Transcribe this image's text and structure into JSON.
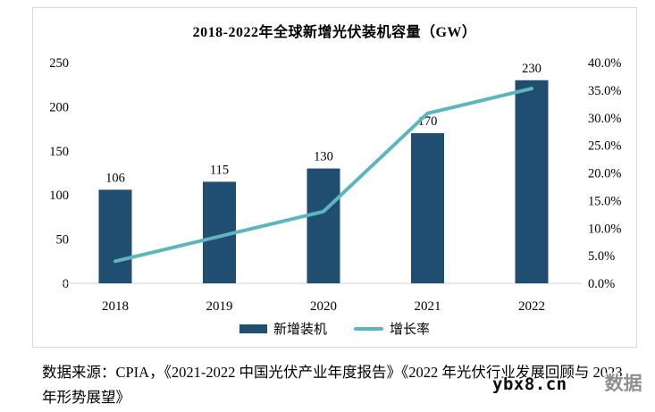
{
  "chart": {
    "title": "2018-2022年全球新增光伏装机容量（GW）",
    "legend": {
      "bar_label": "新增装机",
      "line_label": "增长率"
    },
    "colors": {
      "bar": "#1F4E70",
      "line": "#5EB6BD",
      "axis": "#D9D9D9",
      "text": "#000000"
    }
  },
  "chart_data": {
    "type": "bar",
    "subtype": "bar+line combo, dual axis",
    "title": "2018-2022年全球新增光伏装机容量（GW）",
    "categories": [
      "2018",
      "2019",
      "2020",
      "2021",
      "2022"
    ],
    "series": [
      {
        "name": "新增装机",
        "type": "bar",
        "axis": "left",
        "values": [
          106,
          115,
          130,
          170,
          230
        ]
      },
      {
        "name": "增长率",
        "type": "line",
        "axis": "right",
        "values_pct": [
          4.0,
          8.5,
          13.0,
          30.8,
          35.3
        ]
      }
    ],
    "bar_data_labels": [
      "106",
      "115",
      "130",
      "170",
      "230"
    ],
    "left_axis": {
      "ticks": [
        0,
        50,
        100,
        150,
        200,
        250
      ],
      "min": 0,
      "max": 250
    },
    "right_axis": {
      "ticks_pct": [
        0,
        5,
        10,
        15,
        20,
        25,
        30,
        35,
        40
      ],
      "min_pct": 0,
      "max_pct": 40,
      "tick_format": "percent_one_decimal"
    },
    "grid": "off",
    "legend_position": "bottom"
  },
  "source": {
    "line1": "数据来源：CPIA，《2021-2022 中国光伏产业年度报告》《2022 年光伏行业发展回顾与 2023",
    "line2": "年形势展望》"
  },
  "watermark": {
    "text": "ybx8.cn",
    "ghost": "数据"
  }
}
